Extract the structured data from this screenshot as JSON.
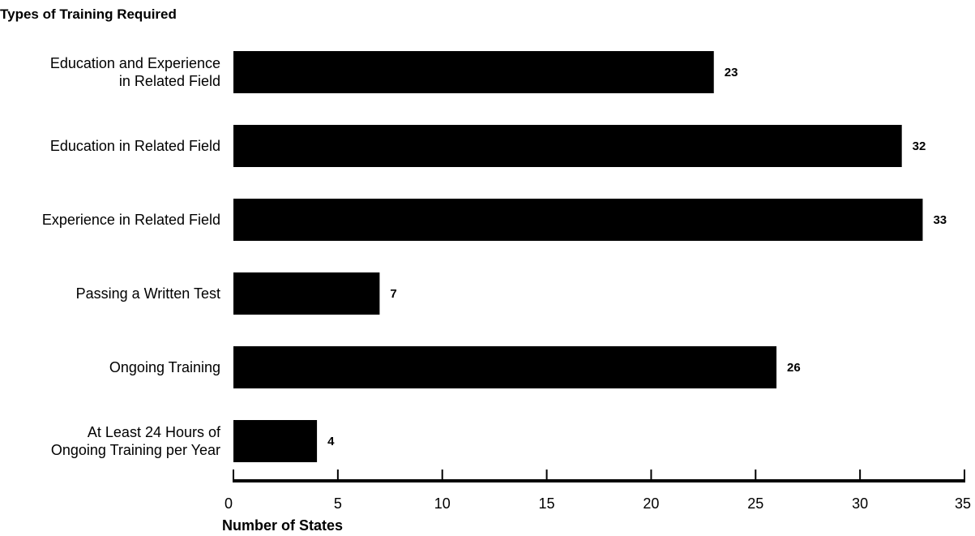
{
  "chart_data": {
    "type": "bar",
    "orientation": "horizontal",
    "title": "Types of Training Required",
    "xlabel": "Number of States",
    "ylabel": "",
    "xlim": [
      0,
      35
    ],
    "xticks": [
      0,
      5,
      10,
      15,
      20,
      25,
      30,
      35
    ],
    "grid": false,
    "legend": "none",
    "categories": [
      [
        "Education and Experience",
        "in Related Field"
      ],
      [
        "Education in Related Field"
      ],
      [
        "Experience in Related Field"
      ],
      [
        "Passing a Written Test"
      ],
      [
        "Ongoing Training"
      ],
      [
        "At Least 24 Hours of",
        "Ongoing Training per Year"
      ]
    ],
    "values": [
      23,
      32,
      33,
      7,
      26,
      4
    ],
    "bar_color": "#000000"
  }
}
